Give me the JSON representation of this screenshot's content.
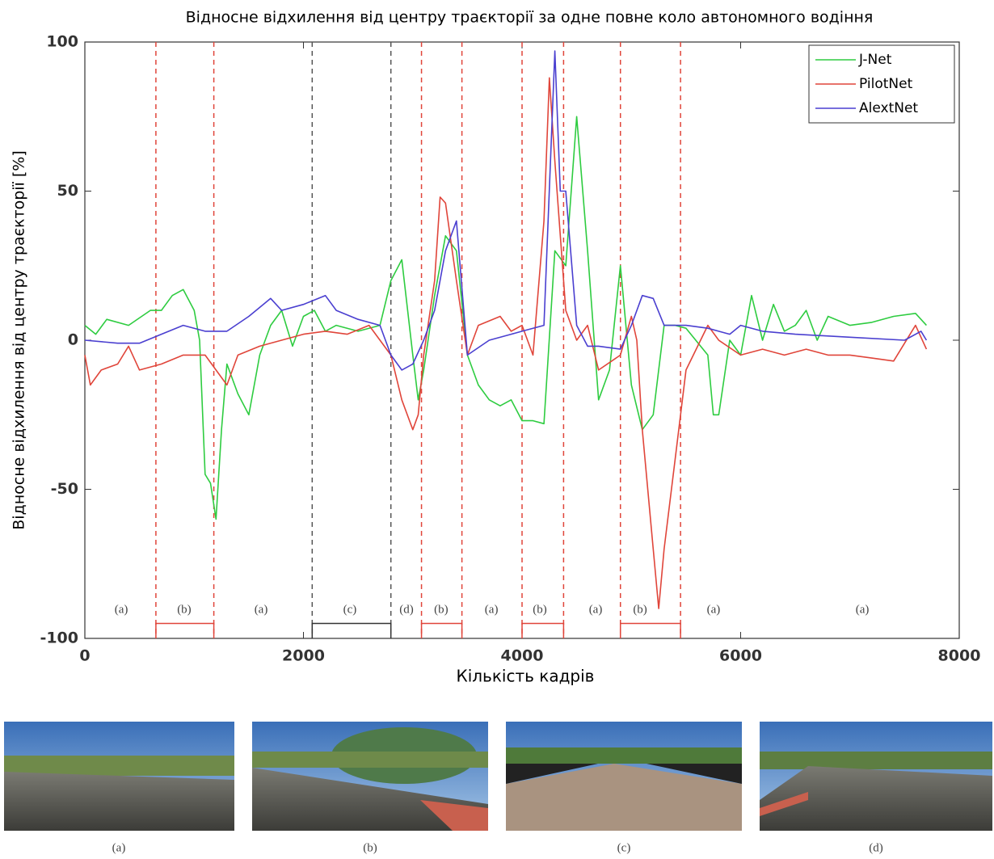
{
  "chart_data": {
    "type": "line",
    "title": "Відносне відхилення від центру траєкторії за одне повне коло автономного водіння",
    "x_label": "Кількість кадрів",
    "y_label": "Відносне відхилення від центру траєкторії [%]",
    "xlim": [
      0,
      8000
    ],
    "xticks": [
      0,
      2000,
      4000,
      6000,
      8000
    ],
    "ylim": [
      -100,
      100
    ],
    "yticks": [
      -100,
      -50,
      0,
      50,
      100
    ],
    "legend": "top-right",
    "series": [
      {
        "name": "J-Net",
        "color": "#2ecc40",
        "x": [
          0,
          100,
          200,
          400,
          600,
          700,
          800,
          900,
          1000,
          1050,
          1100,
          1150,
          1200,
          1250,
          1300,
          1400,
          1500,
          1600,
          1700,
          1800,
          1900,
          2000,
          2100,
          2200,
          2300,
          2500,
          2700,
          2800,
          2900,
          3000,
          3050,
          3100,
          3200,
          3300,
          3400,
          3500,
          3600,
          3700,
          3800,
          3900,
          4000,
          4100,
          4200,
          4300,
          4400,
          4500,
          4600,
          4700,
          4800,
          4900,
          5000,
          5100,
          5200,
          5300,
          5400,
          5500,
          5700,
          5750,
          5800,
          5900,
          6000,
          6100,
          6200,
          6300,
          6400,
          6500,
          6600,
          6700,
          6800,
          7000,
          7200,
          7400,
          7600,
          7700
        ],
        "values": [
          5,
          2,
          7,
          5,
          10,
          10,
          15,
          17,
          10,
          0,
          -45,
          -48,
          -60,
          -30,
          -8,
          -18,
          -25,
          -5,
          5,
          10,
          -2,
          8,
          10,
          3,
          5,
          3,
          5,
          20,
          27,
          -5,
          -20,
          -10,
          15,
          35,
          30,
          -5,
          -15,
          -20,
          -22,
          -20,
          -27,
          -27,
          -28,
          30,
          25,
          75,
          30,
          -20,
          -10,
          25,
          -15,
          -30,
          -25,
          5,
          5,
          4,
          -5,
          -25,
          -25,
          0,
          -5,
          15,
          0,
          12,
          3,
          5,
          10,
          0,
          8,
          5,
          6,
          8,
          9,
          5
        ]
      },
      {
        "name": "PilotNet",
        "color": "#e0453a",
        "x": [
          0,
          50,
          150,
          300,
          400,
          500,
          700,
          900,
          1100,
          1200,
          1300,
          1400,
          1600,
          1800,
          2000,
          2200,
          2400,
          2600,
          2800,
          2900,
          3000,
          3050,
          3100,
          3200,
          3250,
          3300,
          3400,
          3500,
          3600,
          3800,
          3900,
          4000,
          4100,
          4200,
          4250,
          4300,
          4400,
          4500,
          4600,
          4700,
          4900,
          5000,
          5050,
          5100,
          5200,
          5250,
          5300,
          5400,
          5500,
          5700,
          5800,
          6000,
          6200,
          6400,
          6600,
          6800,
          7000,
          7200,
          7400,
          7600,
          7700
        ],
        "values": [
          -5,
          -15,
          -10,
          -8,
          -2,
          -10,
          -8,
          -5,
          -5,
          -10,
          -15,
          -5,
          -2,
          0,
          2,
          3,
          2,
          5,
          -5,
          -20,
          -30,
          -25,
          -5,
          20,
          48,
          46,
          20,
          -5,
          5,
          8,
          3,
          5,
          -5,
          40,
          88,
          60,
          10,
          0,
          5,
          -10,
          -5,
          8,
          0,
          -30,
          -70,
          -90,
          -70,
          -40,
          -10,
          5,
          0,
          -5,
          -3,
          -5,
          -3,
          -5,
          -5,
          -6,
          -7,
          5,
          -3
        ]
      },
      {
        "name": "AlextNet",
        "color": "#4a3fd0",
        "x": [
          0,
          300,
          500,
          700,
          900,
          1100,
          1300,
          1500,
          1700,
          1800,
          2000,
          2200,
          2300,
          2500,
          2700,
          2800,
          2900,
          3000,
          3100,
          3200,
          3300,
          3400,
          3500,
          3700,
          3900,
          4000,
          4200,
          4300,
          4350,
          4400,
          4500,
          4600,
          4700,
          4900,
          5000,
          5100,
          5200,
          5300,
          5500,
          5700,
          5900,
          6000,
          6200,
          6500,
          7000,
          7500,
          7650,
          7700
        ],
        "values": [
          0,
          -1,
          -1,
          2,
          5,
          3,
          3,
          8,
          14,
          10,
          12,
          15,
          10,
          7,
          5,
          -5,
          -10,
          -8,
          0,
          10,
          30,
          40,
          -5,
          0,
          2,
          3,
          5,
          97,
          50,
          50,
          5,
          -2,
          -2,
          -3,
          5,
          15,
          14,
          5,
          5,
          4,
          2,
          5,
          3,
          2,
          1,
          0,
          3,
          0
        ]
      }
    ],
    "boundaries": [
      {
        "x": 650,
        "color": "#e0453a"
      },
      {
        "x": 1180,
        "color": "#e0453a"
      },
      {
        "x": 2080,
        "color": "#555555"
      },
      {
        "x": 2800,
        "color": "#555555"
      },
      {
        "x": 3080,
        "color": "#e0453a"
      },
      {
        "x": 3450,
        "color": "#e0453a"
      },
      {
        "x": 4000,
        "color": "#e0453a"
      },
      {
        "x": 4380,
        "color": "#e0453a"
      },
      {
        "x": 4900,
        "color": "#e0453a"
      },
      {
        "x": 5450,
        "color": "#e0453a"
      }
    ],
    "brackets": [
      {
        "start": 650,
        "end": 1180,
        "color": "#e0453a"
      },
      {
        "start": 2080,
        "end": 2800,
        "color": "#333333"
      },
      {
        "start": 3080,
        "end": 3450,
        "color": "#e0453a"
      },
      {
        "start": 4000,
        "end": 4380,
        "color": "#e0453a"
      },
      {
        "start": 4900,
        "end": 5450,
        "color": "#e0453a"
      }
    ],
    "region_labels": [
      {
        "label": "(a)",
        "x": 333
      },
      {
        "label": "(b)",
        "x": 909
      },
      {
        "label": "(a)",
        "x": 1612
      },
      {
        "label": "(c)",
        "x": 2425
      },
      {
        "label": "(d)",
        "x": 2943
      },
      {
        "label": "(b)",
        "x": 3260
      },
      {
        "label": "(a)",
        "x": 3720
      },
      {
        "label": "(b)",
        "x": 4163
      },
      {
        "label": "(a)",
        "x": 4673
      },
      {
        "label": "(b)",
        "x": 5080
      },
      {
        "label": "(a)",
        "x": 5752
      },
      {
        "label": "(a)",
        "x": 7113
      }
    ]
  },
  "images": [
    {
      "caption": "(a)"
    },
    {
      "caption": "(b)"
    },
    {
      "caption": "(c)"
    },
    {
      "caption": "(d)"
    }
  ]
}
